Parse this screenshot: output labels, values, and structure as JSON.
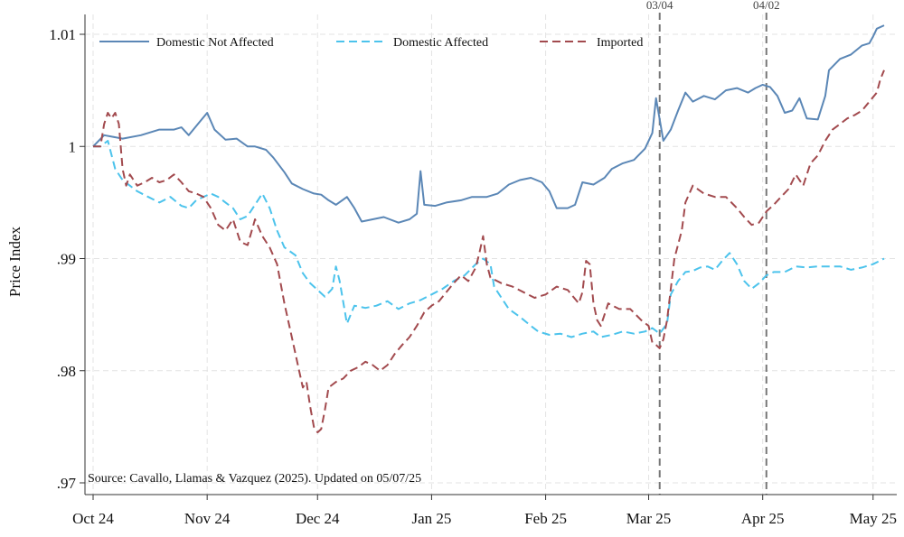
{
  "chart_data": {
    "type": "line",
    "title": "",
    "xlabel": "",
    "ylabel": "Price Index",
    "ylim": [
      0.97,
      1.0115
    ],
    "yticks": [
      {
        "value": 0.97,
        "label": ".97"
      },
      {
        "value": 0.98,
        "label": ".98"
      },
      {
        "value": 0.99,
        "label": ".99"
      },
      {
        "value": 1.0,
        "label": "1"
      },
      {
        "value": 1.01,
        "label": "1.01"
      }
    ],
    "xlim": [
      0,
      215
    ],
    "xticks": [
      {
        "value": 0,
        "label": "Oct 24"
      },
      {
        "value": 31,
        "label": "Nov 24"
      },
      {
        "value": 61,
        "label": "Dec 24"
      },
      {
        "value": 92,
        "label": "Jan 25"
      },
      {
        "value": 123,
        "label": "Feb 25"
      },
      {
        "value": 151,
        "label": "Mar 25"
      },
      {
        "value": 182,
        "label": "Apr 25"
      },
      {
        "value": 212,
        "label": "May 25"
      }
    ],
    "grid": true,
    "legend_position": "top",
    "vlines": [
      {
        "x": 154,
        "label": "03/04"
      },
      {
        "x": 183,
        "label": "04/02"
      }
    ],
    "source_note": "Source: Cavallo, Llamas & Vazquez (2025). Updated on 05/07/25",
    "series": [
      {
        "name": "Domestic Not Affected",
        "color": "#5b87b6",
        "dash": "solid",
        "points": [
          [
            0,
            1.0
          ],
          [
            3,
            1.001
          ],
          [
            8,
            1.0007
          ],
          [
            13,
            1.001
          ],
          [
            18,
            1.0015
          ],
          [
            22,
            1.0015
          ],
          [
            24,
            1.0017
          ],
          [
            26,
            1.001
          ],
          [
            29,
            1.0022
          ],
          [
            31,
            1.003
          ],
          [
            33,
            1.0015
          ],
          [
            36,
            1.0006
          ],
          [
            39,
            1.0007
          ],
          [
            42,
            1.0
          ],
          [
            44,
            1.0
          ],
          [
            47,
            0.9997
          ],
          [
            49,
            0.999
          ],
          [
            52,
            0.9977
          ],
          [
            54,
            0.9967
          ],
          [
            57,
            0.9962
          ],
          [
            60,
            0.9958
          ],
          [
            62,
            0.9957
          ],
          [
            64,
            0.9952
          ],
          [
            66,
            0.9948
          ],
          [
            69,
            0.9955
          ],
          [
            71,
            0.9945
          ],
          [
            73,
            0.9933
          ],
          [
            76,
            0.9935
          ],
          [
            79,
            0.9937
          ],
          [
            83,
            0.9932
          ],
          [
            86,
            0.9935
          ],
          [
            88,
            0.994
          ],
          [
            89,
            0.9978
          ],
          [
            90,
            0.9948
          ],
          [
            93,
            0.9947
          ],
          [
            96,
            0.995
          ],
          [
            100,
            0.9952
          ],
          [
            103,
            0.9955
          ],
          [
            107,
            0.9955
          ],
          [
            110,
            0.9958
          ],
          [
            113,
            0.9966
          ],
          [
            116,
            0.997
          ],
          [
            119,
            0.9972
          ],
          [
            122,
            0.9968
          ],
          [
            124,
            0.996
          ],
          [
            126,
            0.9945
          ],
          [
            129,
            0.9945
          ],
          [
            131,
            0.9948
          ],
          [
            133,
            0.9968
          ],
          [
            136,
            0.9966
          ],
          [
            139,
            0.9972
          ],
          [
            141,
            0.998
          ],
          [
            144,
            0.9985
          ],
          [
            147,
            0.9988
          ],
          [
            150,
            0.9998
          ],
          [
            152,
            1.0012
          ],
          [
            153,
            1.0043
          ],
          [
            155,
            1.0005
          ],
          [
            157,
            1.0015
          ],
          [
            159,
            1.0032
          ],
          [
            161,
            1.0048
          ],
          [
            163,
            1.004
          ],
          [
            166,
            1.0045
          ],
          [
            169,
            1.0042
          ],
          [
            172,
            1.005
          ],
          [
            175,
            1.0052
          ],
          [
            178,
            1.0048
          ],
          [
            180,
            1.0052
          ],
          [
            182,
            1.0055
          ],
          [
            184,
            1.0053
          ],
          [
            186,
            1.0045
          ],
          [
            188,
            1.003
          ],
          [
            190,
            1.0032
          ],
          [
            192,
            1.0043
          ],
          [
            194,
            1.0025
          ],
          [
            197,
            1.0024
          ],
          [
            199,
            1.0045
          ],
          [
            200,
            1.0068
          ],
          [
            203,
            1.0078
          ],
          [
            206,
            1.0082
          ],
          [
            209,
            1.009
          ],
          [
            211,
            1.0092
          ],
          [
            212,
            1.0098
          ],
          [
            213,
            1.0105
          ],
          [
            215,
            1.0108
          ]
        ]
      },
      {
        "name": "Domestic Affected",
        "color": "#4cc3ec",
        "dash": "dashed",
        "points": [
          [
            0,
            1.0
          ],
          [
            2,
            1.0
          ],
          [
            4,
            1.0005
          ],
          [
            6,
            0.998
          ],
          [
            8,
            0.997
          ],
          [
            10,
            0.9965
          ],
          [
            12,
            0.996
          ],
          [
            15,
            0.9955
          ],
          [
            18,
            0.995
          ],
          [
            21,
            0.9955
          ],
          [
            24,
            0.9947
          ],
          [
            26,
            0.9945
          ],
          [
            28,
            0.9952
          ],
          [
            30,
            0.9955
          ],
          [
            32,
            0.9958
          ],
          [
            34,
            0.9955
          ],
          [
            36,
            0.995
          ],
          [
            38,
            0.9945
          ],
          [
            40,
            0.9935
          ],
          [
            42,
            0.9938
          ],
          [
            44,
            0.9948
          ],
          [
            46,
            0.9958
          ],
          [
            48,
            0.9945
          ],
          [
            50,
            0.9925
          ],
          [
            52,
            0.991
          ],
          [
            55,
            0.9903
          ],
          [
            57,
            0.9887
          ],
          [
            59,
            0.9878
          ],
          [
            61,
            0.9872
          ],
          [
            63,
            0.9866
          ],
          [
            65,
            0.9873
          ],
          [
            66,
            0.9893
          ],
          [
            67,
            0.988
          ],
          [
            69,
            0.9842
          ],
          [
            71,
            0.9858
          ],
          [
            74,
            0.9856
          ],
          [
            77,
            0.9858
          ],
          [
            80,
            0.9862
          ],
          [
            83,
            0.9855
          ],
          [
            86,
            0.986
          ],
          [
            89,
            0.9863
          ],
          [
            92,
            0.9868
          ],
          [
            95,
            0.9873
          ],
          [
            98,
            0.988
          ],
          [
            101,
            0.9885
          ],
          [
            104,
            0.9895
          ],
          [
            106,
            0.99
          ],
          [
            108,
            0.9895
          ],
          [
            109,
            0.9875
          ],
          [
            111,
            0.9865
          ],
          [
            113,
            0.9855
          ],
          [
            116,
            0.9848
          ],
          [
            119,
            0.984
          ],
          [
            121,
            0.9835
          ],
          [
            124,
            0.9832
          ],
          [
            127,
            0.9833
          ],
          [
            130,
            0.983
          ],
          [
            133,
            0.9833
          ],
          [
            136,
            0.9835
          ],
          [
            138,
            0.983
          ],
          [
            141,
            0.9832
          ],
          [
            144,
            0.9835
          ],
          [
            147,
            0.9833
          ],
          [
            150,
            0.9835
          ],
          [
            152,
            0.9838
          ],
          [
            154,
            0.9833
          ],
          [
            156,
            0.9842
          ],
          [
            157,
            0.9868
          ],
          [
            159,
            0.988
          ],
          [
            161,
            0.9888
          ],
          [
            163,
            0.9889
          ],
          [
            165,
            0.9892
          ],
          [
            167,
            0.9893
          ],
          [
            169,
            0.989
          ],
          [
            171,
            0.9898
          ],
          [
            173,
            0.9905
          ],
          [
            175,
            0.9895
          ],
          [
            177,
            0.988
          ],
          [
            179,
            0.9873
          ],
          [
            181,
            0.9878
          ],
          [
            183,
            0.9885
          ],
          [
            185,
            0.9888
          ],
          [
            188,
            0.9888
          ],
          [
            191,
            0.9893
          ],
          [
            194,
            0.9892
          ],
          [
            197,
            0.9893
          ],
          [
            200,
            0.9893
          ],
          [
            203,
            0.9893
          ],
          [
            206,
            0.989
          ],
          [
            209,
            0.9892
          ],
          [
            212,
            0.9895
          ],
          [
            215,
            0.99
          ]
        ]
      },
      {
        "name": "Imported",
        "color": "#a24a4e",
        "dash": "dashed",
        "points": [
          [
            0,
            1.0
          ],
          [
            2,
            1.0
          ],
          [
            3,
            1.002
          ],
          [
            4,
            1.003
          ],
          [
            5,
            1.0025
          ],
          [
            6,
            1.003
          ],
          [
            7,
            1.002
          ],
          [
            8,
            0.998
          ],
          [
            9,
            0.9965
          ],
          [
            10,
            0.9975
          ],
          [
            12,
            0.9965
          ],
          [
            14,
            0.9968
          ],
          [
            16,
            0.9972
          ],
          [
            18,
            0.9968
          ],
          [
            20,
            0.997
          ],
          [
            22,
            0.9975
          ],
          [
            24,
            0.9968
          ],
          [
            26,
            0.996
          ],
          [
            28,
            0.9958
          ],
          [
            30,
            0.9955
          ],
          [
            32,
            0.9945
          ],
          [
            34,
            0.993
          ],
          [
            36,
            0.9925
          ],
          [
            38,
            0.9935
          ],
          [
            40,
            0.9915
          ],
          [
            42,
            0.9912
          ],
          [
            44,
            0.9935
          ],
          [
            46,
            0.992
          ],
          [
            48,
            0.991
          ],
          [
            50,
            0.9895
          ],
          [
            52,
            0.986
          ],
          [
            54,
            0.983
          ],
          [
            56,
            0.98
          ],
          [
            57,
            0.9785
          ],
          [
            58,
            0.979
          ],
          [
            59,
            0.9768
          ],
          [
            60,
            0.975
          ],
          [
            61,
            0.9745
          ],
          [
            62,
            0.9748
          ],
          [
            63,
            0.9765
          ],
          [
            64,
            0.9785
          ],
          [
            66,
            0.979
          ],
          [
            68,
            0.9793
          ],
          [
            70,
            0.98
          ],
          [
            72,
            0.9803
          ],
          [
            74,
            0.9808
          ],
          [
            76,
            0.9805
          ],
          [
            78,
            0.98
          ],
          [
            80,
            0.9805
          ],
          [
            82,
            0.9815
          ],
          [
            84,
            0.9823
          ],
          [
            86,
            0.983
          ],
          [
            88,
            0.984
          ],
          [
            90,
            0.9852
          ],
          [
            92,
            0.9858
          ],
          [
            94,
            0.9862
          ],
          [
            96,
            0.987
          ],
          [
            98,
            0.9878
          ],
          [
            100,
            0.9885
          ],
          [
            102,
            0.988
          ],
          [
            104,
            0.9892
          ],
          [
            105,
            0.9905
          ],
          [
            106,
            0.992
          ],
          [
            107,
            0.9895
          ],
          [
            108,
            0.9883
          ],
          [
            111,
            0.9878
          ],
          [
            114,
            0.9875
          ],
          [
            117,
            0.987
          ],
          [
            120,
            0.9865
          ],
          [
            123,
            0.9868
          ],
          [
            126,
            0.9875
          ],
          [
            129,
            0.9872
          ],
          [
            132,
            0.986
          ],
          [
            133,
            0.987
          ],
          [
            134,
            0.9898
          ],
          [
            135,
            0.9895
          ],
          [
            136,
            0.986
          ],
          [
            137,
            0.9845
          ],
          [
            138,
            0.984
          ],
          [
            140,
            0.986
          ],
          [
            143,
            0.9855
          ],
          [
            146,
            0.9855
          ],
          [
            149,
            0.9845
          ],
          [
            151,
            0.984
          ],
          [
            152,
            0.9825
          ],
          [
            153,
            0.9823
          ],
          [
            154,
            0.982
          ],
          [
            155,
            0.9828
          ],
          [
            156,
            0.9845
          ],
          [
            158,
            0.99
          ],
          [
            160,
            0.9925
          ],
          [
            161,
            0.995
          ],
          [
            163,
            0.9965
          ],
          [
            166,
            0.9958
          ],
          [
            169,
            0.9955
          ],
          [
            172,
            0.9955
          ],
          [
            175,
            0.9945
          ],
          [
            177,
            0.9937
          ],
          [
            179,
            0.993
          ],
          [
            181,
            0.9932
          ],
          [
            183,
            0.9942
          ],
          [
            185,
            0.9948
          ],
          [
            187,
            0.9955
          ],
          [
            189,
            0.9962
          ],
          [
            191,
            0.9975
          ],
          [
            193,
            0.9965
          ],
          [
            195,
            0.9985
          ],
          [
            197,
            0.9992
          ],
          [
            199,
            1.0005
          ],
          [
            201,
            1.0015
          ],
          [
            203,
            1.002
          ],
          [
            205,
            1.0025
          ],
          [
            207,
            1.0028
          ],
          [
            209,
            1.0032
          ],
          [
            211,
            1.004
          ],
          [
            213,
            1.0048
          ],
          [
            214,
            1.006
          ],
          [
            215,
            1.0068
          ]
        ]
      }
    ]
  }
}
